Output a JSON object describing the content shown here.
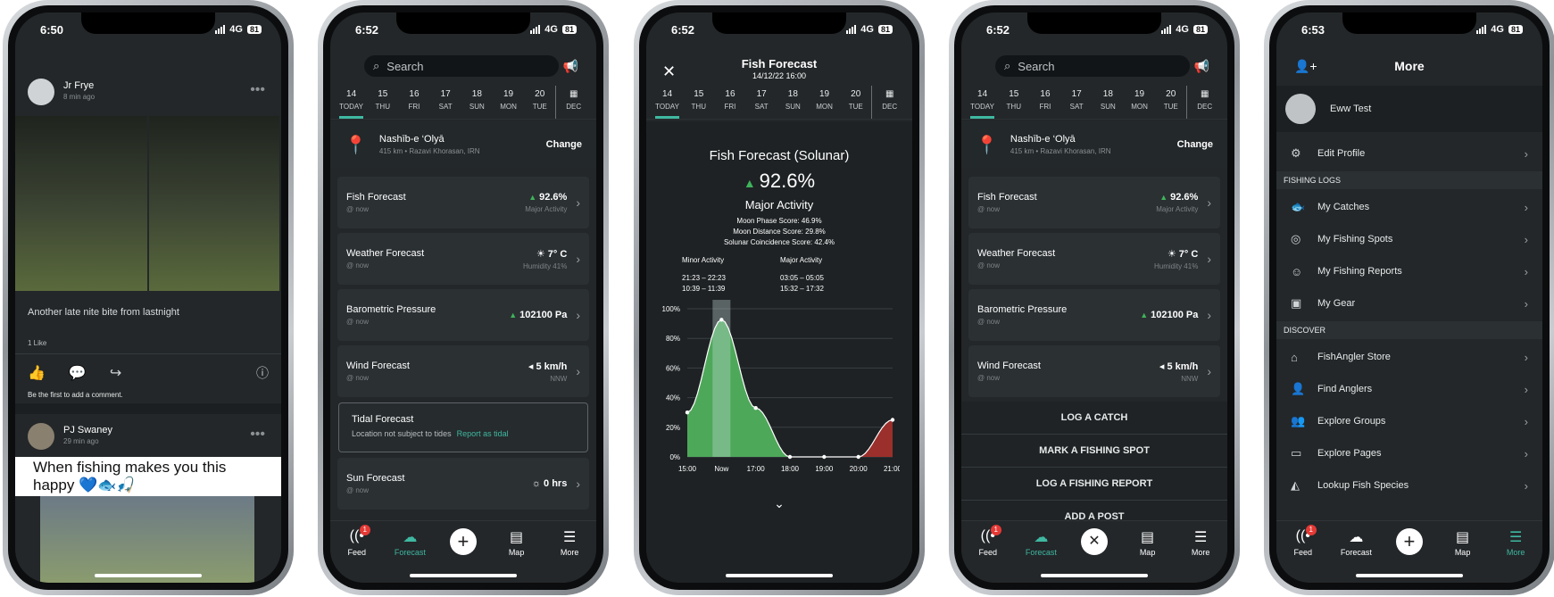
{
  "feed": {
    "time": "6:50",
    "net": "4G",
    "batt": "81",
    "post1": {
      "author": "Jr Frye",
      "ago": "8 min ago",
      "caption": "Another late nite bite from lastnight",
      "likes": "1 Like",
      "first": "Be the first to add a comment."
    },
    "post2": {
      "author": "PJ Swaney",
      "ago": "29 min ago",
      "text": "When fishing makes you this happy 💙🐟🎣"
    }
  },
  "forecast": {
    "time": "6:52",
    "net": "4G",
    "batt": "81",
    "search": "Search",
    "days": [
      {
        "d": "14",
        "w": "TODAY"
      },
      {
        "d": "15",
        "w": "THU"
      },
      {
        "d": "16",
        "w": "FRI"
      },
      {
        "d": "17",
        "w": "SAT"
      },
      {
        "d": "18",
        "w": "SUN"
      },
      {
        "d": "19",
        "w": "MON"
      },
      {
        "d": "20",
        "w": "TUE"
      }
    ],
    "cal": "DEC",
    "location": {
      "name": "Nashīb-e ‘Olyā",
      "addr": "415 km • Razavi Khorasan, IRN",
      "change": "Change"
    },
    "cards": [
      {
        "title": "Fish Forecast",
        "sub": "@ now",
        "value": "92.6%",
        "sub2": "Major Activity"
      },
      {
        "title": "Weather Forecast",
        "sub": "@ now",
        "value": "7° C",
        "sub2": "Humidity 41%"
      },
      {
        "title": "Barometric Pressure",
        "sub": "@ now",
        "value": "102100 Pa",
        "sub2": ""
      },
      {
        "title": "Wind Forecast",
        "sub": "@ now",
        "value": "5 km/h",
        "sub2": "NNW"
      }
    ],
    "tidal": {
      "title": "Tidal Forecast",
      "text": "Location not subject to tides",
      "link": "Report as tidal"
    },
    "sun": {
      "title": "Sun Forecast",
      "sub": "@ now",
      "value": "0 hrs"
    }
  },
  "detail": {
    "time": "6:52",
    "title": "Fish Forecast",
    "datetime": "14/12/22 16:00",
    "heading": "Fish Forecast (Solunar)",
    "score": "92.6%",
    "activity": "Major Activity",
    "scores": [
      "Moon Phase Score:  46.9%",
      "Moon Distance Score:  29.8%",
      "Solunar Coincidence Score:  42.4%"
    ],
    "minor": {
      "label": "Minor Activity",
      "r1": "21:23 – 22:23",
      "r2": "10:39 – 11:39"
    },
    "major": {
      "label": "Major Activity",
      "r1": "03:05 – 05:05",
      "r2": "15:32 – 17:32"
    }
  },
  "chart_data": {
    "type": "area",
    "x": [
      "15:00",
      "16:00",
      "17:00",
      "18:00",
      "19:00",
      "20:00",
      "21:00"
    ],
    "xticklabels": [
      "15:00",
      "Now",
      "17:00",
      "18:00",
      "19:00",
      "20:00",
      "21:00"
    ],
    "values": [
      30,
      92.6,
      33,
      0,
      0,
      0,
      25
    ],
    "ylim": [
      0,
      100
    ],
    "yticks": [
      "0%",
      "20%",
      "40%",
      "60%",
      "80%",
      "100%"
    ],
    "colors": {
      "high": "#4ea85a",
      "low": "#9b2f2b"
    }
  },
  "actions": {
    "time": "6:52",
    "items": [
      "LOG A CATCH",
      "MARK A FISHING SPOT",
      "LOG A FISHING REPORT",
      "ADD A POST"
    ]
  },
  "more": {
    "time": "6:53",
    "title": "More",
    "user": "Eww Test",
    "edit": "Edit Profile",
    "sec1": "FISHING LOGS",
    "logs": [
      "My Catches",
      "My Fishing Spots",
      "My Fishing Reports",
      "My Gear"
    ],
    "sec2": "DISCOVER",
    "discover": [
      "FishAngler Store",
      "Find Anglers",
      "Explore Groups",
      "Explore Pages",
      "Lookup Fish Species"
    ]
  },
  "tabs": {
    "feed": "Feed",
    "forecast": "Forecast",
    "map": "Map",
    "more": "More",
    "badge": "1"
  }
}
